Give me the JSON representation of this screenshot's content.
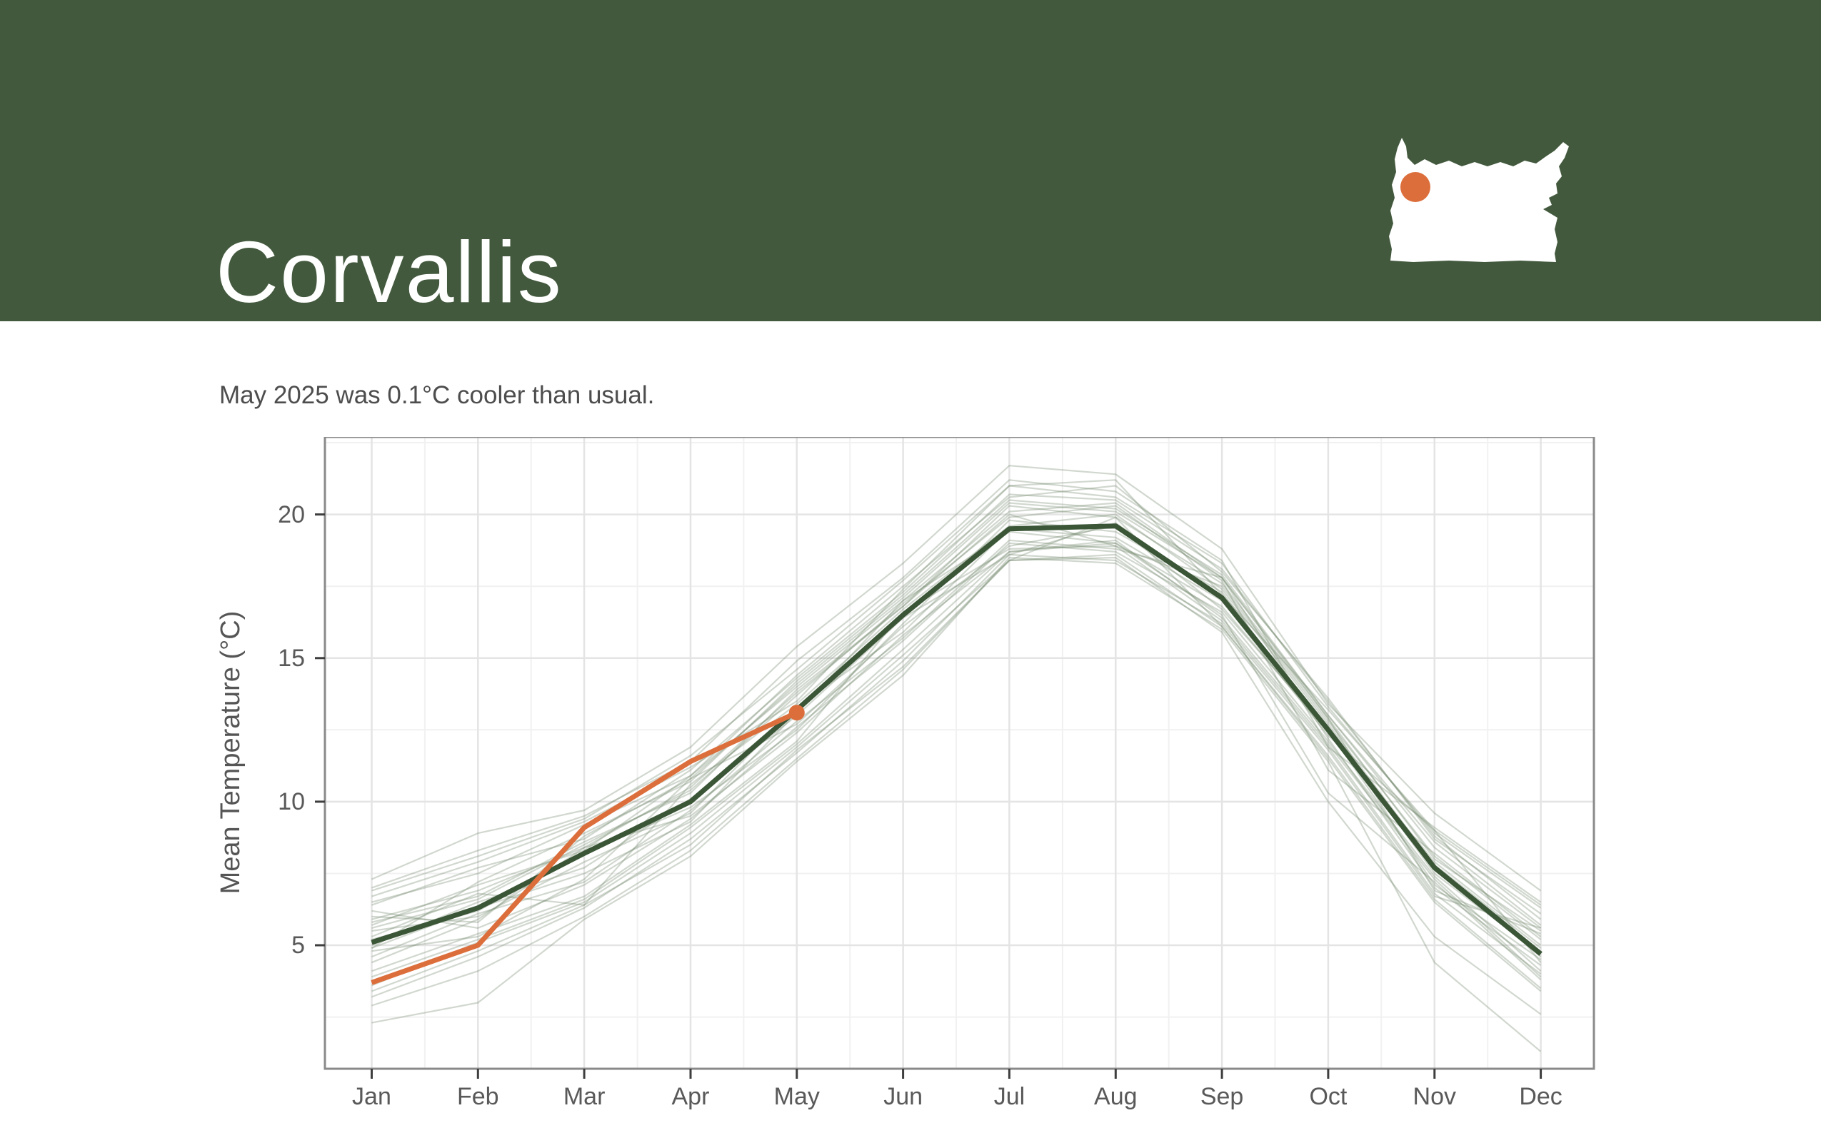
{
  "header": {
    "title": "Corvallis",
    "background_color": "#42593D",
    "map": {
      "name": "oregon-map",
      "fill": "#FFFFFF",
      "marker_color": "#DC6E3B"
    }
  },
  "subtitle": "May 2025 was 0.1°C cooler than usual.",
  "text_colors": {
    "title": "#FFFFFF",
    "subtitle": "#4D4D4D"
  },
  "chart_data": {
    "type": "line",
    "title": "",
    "xlabel": "",
    "ylabel": "Mean Temperature (°C)",
    "categories": [
      "Jan",
      "Feb",
      "Mar",
      "Apr",
      "May",
      "Jun",
      "Jul",
      "Aug",
      "Sep",
      "Oct",
      "Nov",
      "Dec"
    ],
    "yticks": [
      5,
      10,
      15,
      20
    ],
    "yminor": [
      2.5,
      7.5,
      12.5,
      17.5,
      22.5
    ],
    "ylim": [
      0.7,
      22.7
    ],
    "x_padding_months": [
      0.44,
      0.5
    ],
    "grid": true,
    "legend_position": "none",
    "series": [
      {
        "name": "historical-years",
        "color": "#6F876B",
        "opacity": 0.32,
        "stroke_width": 2.2,
        "values": [
          [
            5.8,
            6.7,
            8.6,
            10.3,
            13.9,
            16.8,
            20.3,
            19.9,
            17.6,
            12.9,
            8.0,
            5.5
          ],
          [
            4.4,
            5.9,
            8.4,
            9.5,
            12.4,
            15.8,
            18.7,
            19.1,
            16.4,
            12.0,
            7.3,
            3.9
          ],
          [
            6.5,
            7.5,
            9.2,
            10.9,
            14.4,
            17.5,
            20.6,
            21.0,
            18.0,
            13.6,
            8.7,
            6.1
          ],
          [
            3.6,
            5.1,
            6.5,
            8.9,
            11.9,
            15.1,
            18.4,
            18.6,
            16.1,
            11.5,
            6.5,
            3.4
          ],
          [
            5.2,
            6.2,
            8.2,
            9.8,
            12.5,
            16.2,
            19.8,
            19.4,
            17.3,
            12.4,
            7.9,
            5.0
          ],
          [
            7.0,
            8.3,
            9.5,
            11.4,
            14.9,
            17.8,
            21.2,
            20.8,
            18.4,
            11.9,
            9.1,
            6.5
          ],
          [
            2.9,
            4.1,
            6.0,
            8.3,
            11.5,
            14.6,
            18.4,
            18.5,
            15.9,
            10.0,
            5.3,
            2.6
          ],
          [
            5.5,
            6.0,
            7.9,
            9.6,
            13.3,
            15.9,
            19.5,
            19.2,
            17.0,
            12.3,
            9.0,
            4.4
          ],
          [
            4.8,
            5.3,
            7.3,
            10.8,
            12.7,
            16.1,
            18.9,
            19.6,
            16.7,
            12.5,
            7.1,
            4.5
          ],
          [
            4.9,
            7.2,
            8.9,
            10.7,
            14.2,
            17.2,
            20.5,
            20.2,
            17.9,
            13.0,
            8.6,
            5.7
          ],
          [
            3.2,
            4.6,
            6.3,
            8.7,
            11.7,
            14.9,
            18.6,
            18.4,
            16.2,
            11.8,
            6.7,
            5.6
          ],
          [
            5.9,
            6.9,
            8.4,
            10.5,
            13.8,
            16.8,
            20.0,
            18.9,
            17.5,
            12.8,
            8.1,
            5.2
          ],
          [
            4.1,
            5.4,
            6.7,
            9.2,
            12.1,
            16.6,
            18.8,
            18.9,
            16.3,
            11.9,
            6.8,
            4.0
          ],
          [
            6.7,
            7.9,
            9.3,
            11.2,
            13.5,
            17.4,
            21.0,
            20.6,
            18.3,
            13.3,
            8.9,
            6.3
          ],
          [
            5.0,
            6.5,
            7.7,
            10.1,
            13.0,
            16.4,
            18.6,
            19.7,
            17.1,
            12.6,
            7.5,
            4.7
          ],
          [
            2.3,
            3.0,
            5.9,
            8.1,
            11.4,
            14.4,
            18.5,
            18.3,
            16.0,
            11.4,
            4.4,
            1.3
          ],
          [
            5.6,
            6.6,
            8.5,
            10.4,
            13.7,
            16.9,
            19.9,
            20.3,
            17.7,
            11.1,
            8.2,
            5.3
          ],
          [
            4.6,
            6.1,
            7.2,
            9.7,
            12.8,
            15.7,
            19.1,
            18.8,
            17.8,
            12.2,
            7.0,
            4.3
          ],
          [
            7.3,
            8.9,
            9.7,
            11.9,
            15.4,
            18.3,
            21.7,
            21.4,
            18.8,
            13.4,
            9.6,
            6.9
          ],
          [
            3.9,
            5.2,
            6.6,
            9.1,
            12.0,
            15.3,
            18.7,
            19.0,
            16.5,
            10.3,
            7.2,
            3.8
          ],
          [
            5.3,
            6.8,
            6.4,
            10.6,
            13.4,
            16.7,
            19.6,
            20.0,
            17.4,
            12.7,
            7.8,
            4.9
          ],
          [
            6.0,
            5.8,
            8.8,
            10.8,
            14.1,
            17.1,
            20.4,
            20.1,
            17.8,
            13.0,
            8.4,
            5.6
          ],
          [
            6.2,
            5.6,
            7.1,
            9.4,
            12.6,
            15.6,
            19.0,
            18.7,
            16.6,
            12.1,
            7.4,
            4.1
          ],
          [
            6.9,
            8.1,
            9.4,
            11.6,
            14.6,
            17.7,
            21.0,
            21.2,
            17.2,
            13.2,
            9.0,
            6.4
          ],
          [
            3.4,
            4.8,
            6.4,
            8.5,
            11.8,
            14.7,
            18.4,
            19.9,
            16.1,
            11.6,
            6.6,
            3.5
          ],
          [
            5.7,
            7.1,
            8.3,
            10.9,
            14.0,
            17.0,
            20.1,
            20.4,
            17.8,
            12.9,
            6.9,
            5.4
          ],
          [
            4.9,
            6.3,
            7.5,
            9.3,
            13.1,
            17.0,
            19.4,
            19.0,
            16.8,
            12.4,
            7.7,
            4.6
          ],
          [
            6.4,
            7.7,
            8.7,
            11.1,
            14.3,
            17.3,
            20.7,
            20.5,
            18.1,
            13.5,
            8.8,
            5.9
          ]
        ]
      },
      {
        "name": "climatology-mean",
        "color": "#3B5637",
        "opacity": 1,
        "stroke_width": 7,
        "values": [
          5.1,
          6.3,
          8.2,
          10.0,
          13.2,
          16.5,
          19.5,
          19.6,
          17.1,
          12.5,
          7.7,
          4.7
        ]
      },
      {
        "name": "2025",
        "color": "#DC6E3B",
        "opacity": 1,
        "stroke_width": 7,
        "end_dot_radius": 11,
        "values": [
          3.7,
          5.0,
          9.1,
          11.4,
          13.1
        ]
      }
    ],
    "style": {
      "grid_major_color": "#E4E4E4",
      "grid_minor_color": "#F1F1F1",
      "border_color": "#8A8A8A",
      "tick_color": "#3E3E3E",
      "axis_label_color": "#595959",
      "axis_title_color": "#555555"
    }
  }
}
